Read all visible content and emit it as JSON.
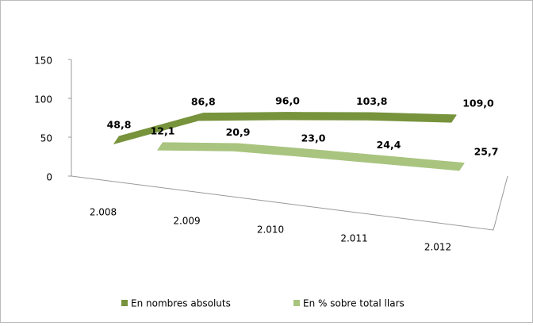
{
  "chart_data": {
    "type": "line3d",
    "categories": [
      "2.008",
      "2.009",
      "2.010",
      "2.011",
      "2.012"
    ],
    "series": [
      {
        "name": "En nombres absoluts",
        "color": "#77933c",
        "values": [
          48.8,
          86.8,
          96.0,
          103.8,
          109.0
        ],
        "value_labels": [
          "48,8",
          "86,8",
          "96,0",
          "103,8",
          "109,0"
        ]
      },
      {
        "name": "En % sobre total llars",
        "color": "#a9c47f",
        "values": [
          12.1,
          20.9,
          23.0,
          24.4,
          25.7
        ],
        "value_labels": [
          "12,1",
          "20,9",
          "23,0",
          "24,4",
          "25,7"
        ]
      }
    ],
    "ylim": [
      0,
      150
    ],
    "yticks": [
      0,
      50,
      100,
      150
    ],
    "legend": "bottom"
  }
}
